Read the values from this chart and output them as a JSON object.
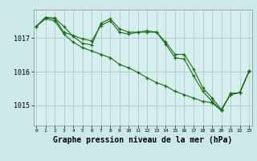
{
  "background_color": "#cce8e8",
  "plot_bg_color": "#d6eeee",
  "grid_color": "#aacccc",
  "line_color": "#1a6b1a",
  "marker_color": "#1a6b1a",
  "xlabel": "Graphe pression niveau de la mer (hPa)",
  "xlabel_fontsize": 7,
  "yticks": [
    1015,
    1016,
    1017
  ],
  "xticks": [
    0,
    1,
    2,
    3,
    4,
    5,
    6,
    7,
    8,
    9,
    10,
    11,
    12,
    13,
    14,
    15,
    16,
    17,
    18,
    19,
    20,
    21,
    22,
    23
  ],
  "xlim": [
    -0.3,
    23.3
  ],
  "ylim": [
    1014.4,
    1017.85
  ],
  "series": [
    [
      1017.35,
      1017.62,
      1017.6,
      1017.35,
      1017.05,
      1016.85,
      1016.8,
      1017.45,
      1017.58,
      1017.28,
      1017.18,
      1017.18,
      1017.22,
      1017.18,
      1016.88,
      1016.52,
      1016.52,
      1016.08,
      1015.52,
      1015.22,
      1014.88,
      1015.32,
      1015.38,
      1016.02
    ],
    [
      1017.35,
      1017.62,
      1017.58,
      1017.18,
      1017.08,
      1016.98,
      1016.92,
      1017.38,
      1017.52,
      1017.18,
      1017.12,
      1017.18,
      1017.18,
      1017.18,
      1016.82,
      1016.42,
      1016.38,
      1015.88,
      1015.42,
      1015.12,
      1014.85,
      1015.35,
      1015.38,
      1016.02
    ],
    [
      1017.35,
      1017.58,
      1017.52,
      1017.12,
      1016.88,
      1016.72,
      1016.62,
      1016.52,
      1016.42,
      1016.22,
      1016.12,
      1015.98,
      1015.82,
      1015.68,
      1015.58,
      1015.42,
      1015.32,
      1015.22,
      1015.12,
      1015.08,
      1014.85,
      1015.35,
      1015.38,
      1016.02
    ]
  ]
}
